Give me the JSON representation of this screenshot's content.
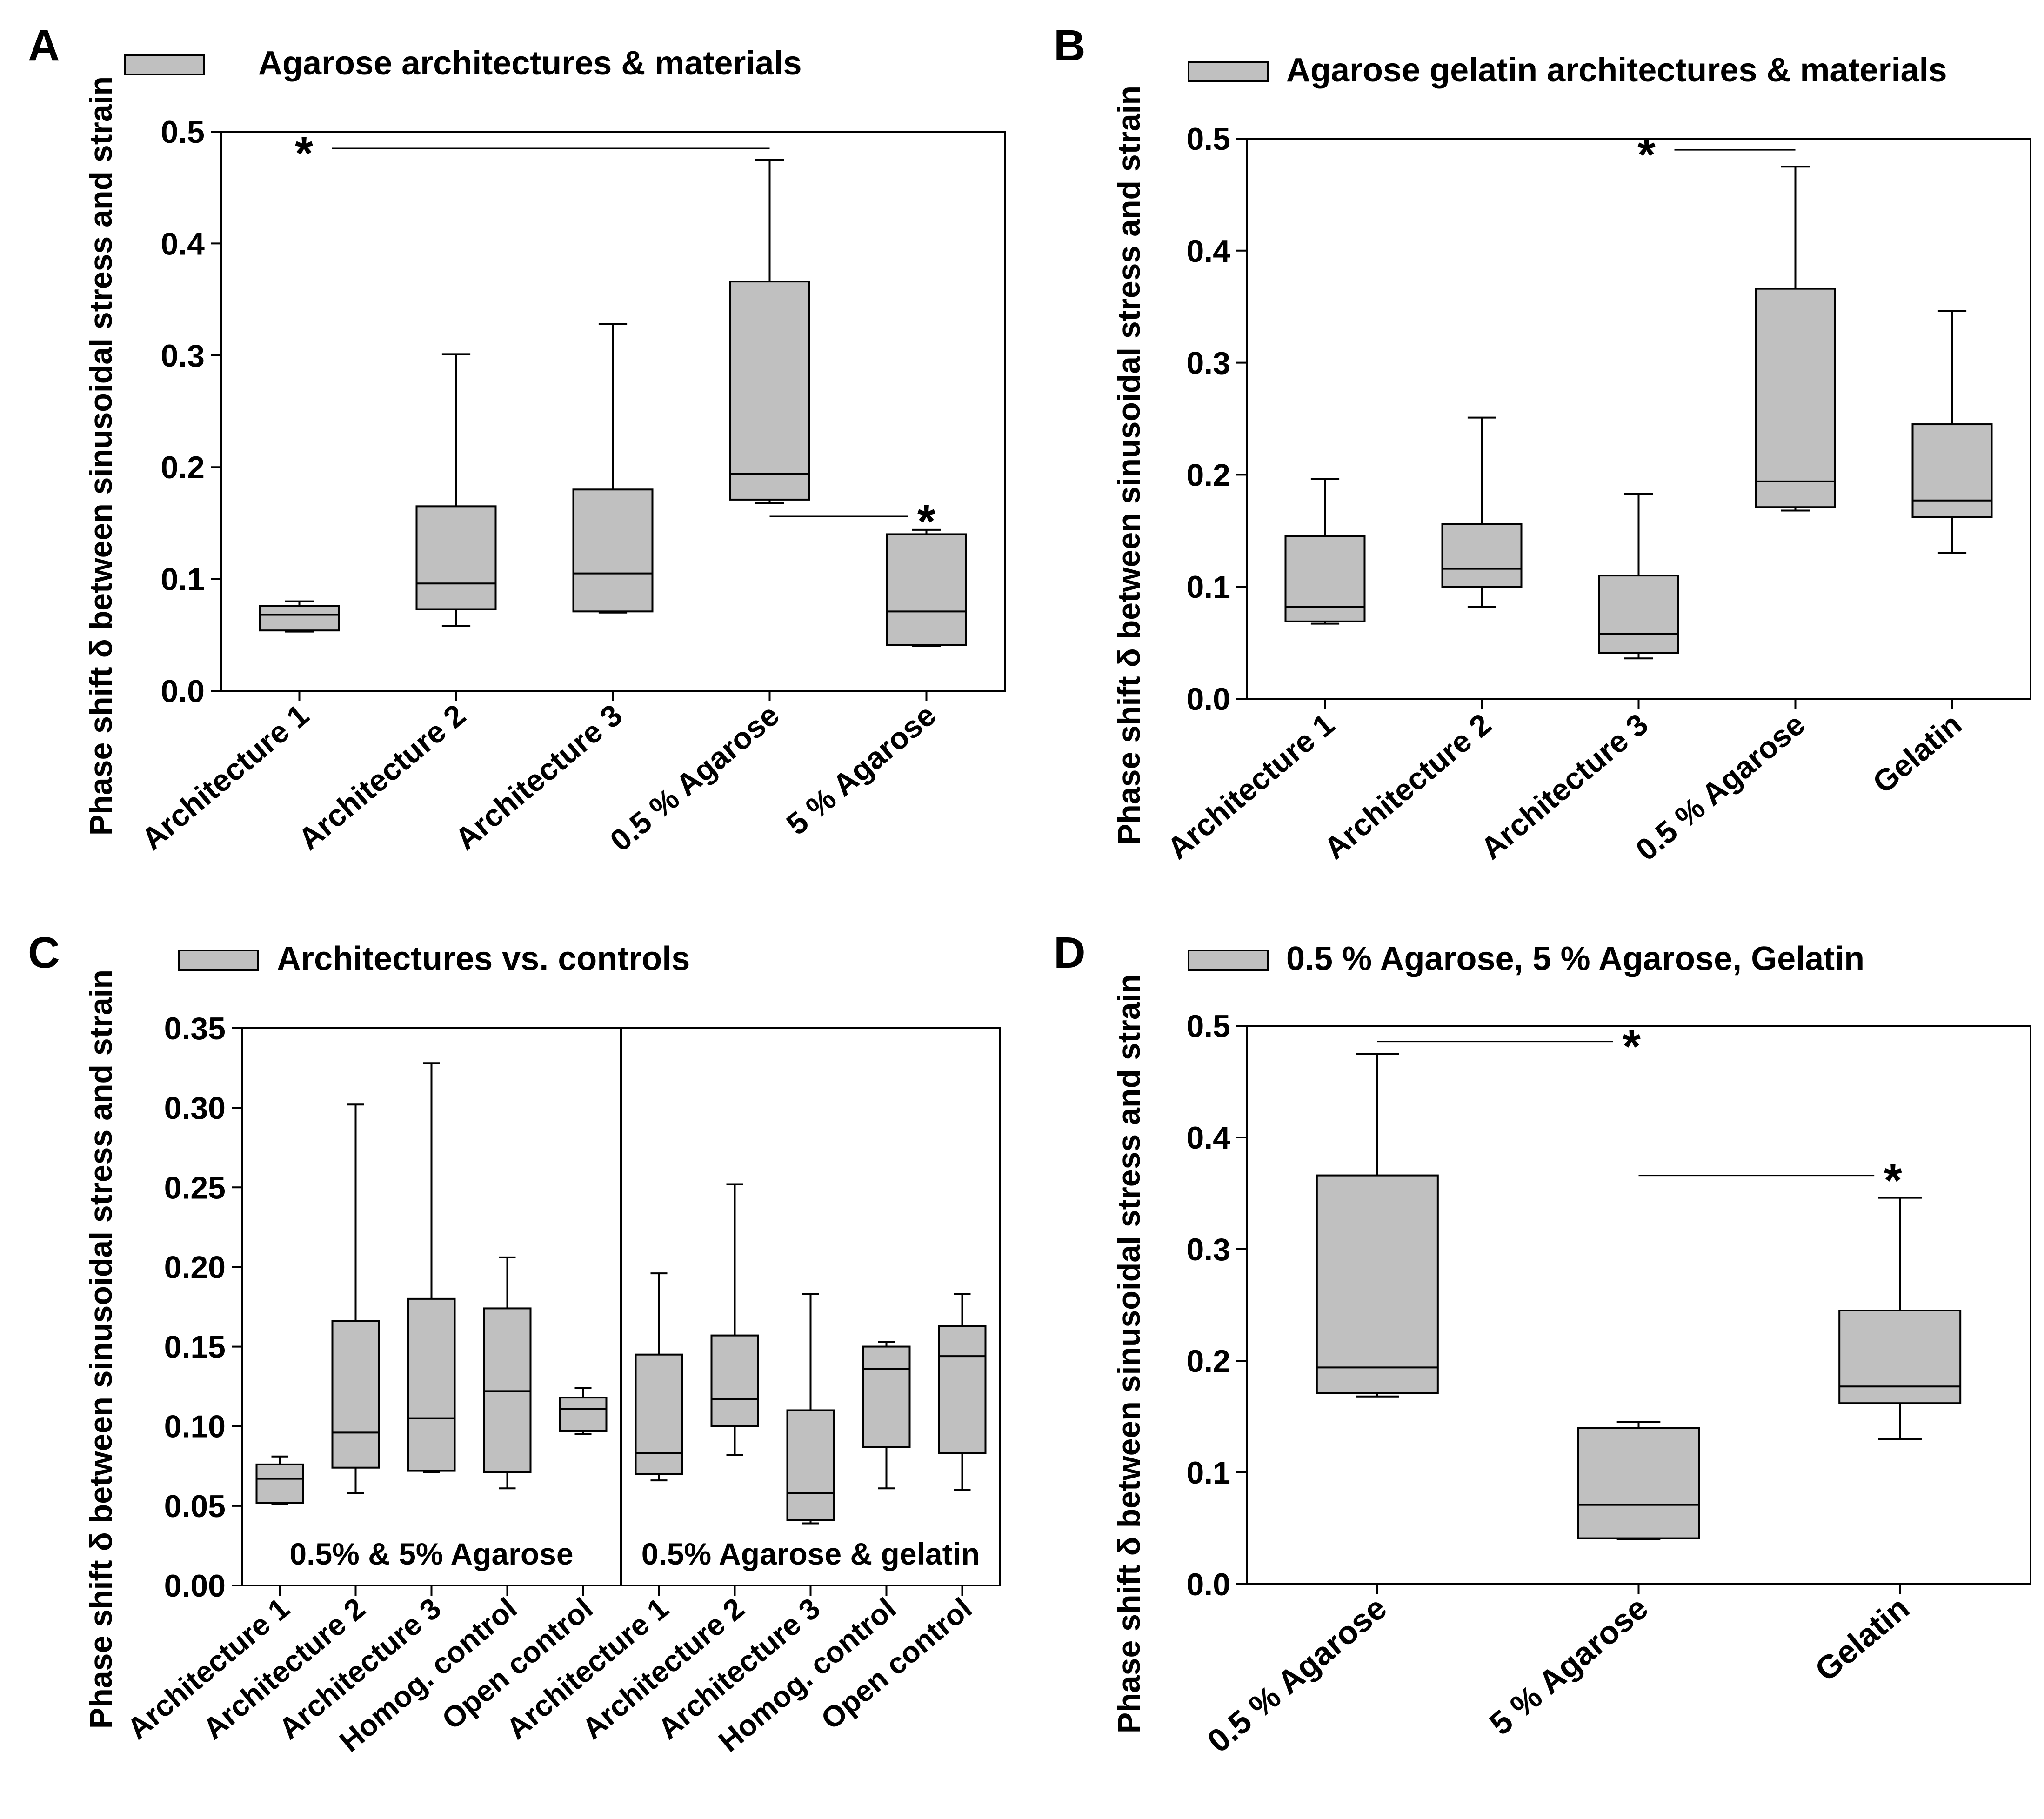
{
  "figure_ylabel": "Phase shift δ between sinusoidal stress and strain",
  "chart_data": [
    {
      "type": "box",
      "panel": "A",
      "legend": "Agarose architectures & materials",
      "ylabel": "Phase shift δ between sinusoidal stress and strain",
      "ylim": [
        0,
        0.5
      ],
      "yticks": [
        "0.0",
        "0.1",
        "0.2",
        "0.3",
        "0.4",
        "0.5"
      ],
      "categories": [
        "Architecture 1",
        "Architecture 2",
        "Architecture 3",
        "0.5 % Agarose",
        "5 % Agarose"
      ],
      "boxes": [
        {
          "min": 0.053,
          "q1": 0.054,
          "median": 0.068,
          "q3": 0.076,
          "max": 0.08
        },
        {
          "min": 0.058,
          "q1": 0.073,
          "median": 0.096,
          "q3": 0.165,
          "max": 0.301
        },
        {
          "min": 0.07,
          "q1": 0.071,
          "median": 0.105,
          "q3": 0.18,
          "max": 0.328
        },
        {
          "min": 0.168,
          "q1": 0.171,
          "median": 0.194,
          "q3": 0.366,
          "max": 0.475
        },
        {
          "min": 0.04,
          "q1": 0.041,
          "median": 0.071,
          "q3": 0.14,
          "max": 0.144
        }
      ],
      "significance": [
        {
          "label": "*",
          "from": 0,
          "to": 3,
          "y": 0.485
        },
        {
          "label": "*",
          "from": 3,
          "to": 4,
          "y": 0.156
        }
      ]
    },
    {
      "type": "box",
      "panel": "B",
      "legend": "Agarose gelatin architectures & materials",
      "ylabel": "Phase shift δ between sinusoidal stress and strain",
      "ylim": [
        0,
        0.5
      ],
      "yticks": [
        "0.0",
        "0.1",
        "0.2",
        "0.3",
        "0.4",
        "0.5"
      ],
      "categories": [
        "Architecture 1",
        "Architecture 2",
        "Architecture 3",
        "0.5 % Agarose",
        "Gelatin"
      ],
      "boxes": [
        {
          "min": 0.067,
          "q1": 0.069,
          "median": 0.082,
          "q3": 0.145,
          "max": 0.196
        },
        {
          "min": 0.082,
          "q1": 0.1,
          "median": 0.116,
          "q3": 0.156,
          "max": 0.251
        },
        {
          "min": 0.036,
          "q1": 0.041,
          "median": 0.058,
          "q3": 0.11,
          "max": 0.183
        },
        {
          "min": 0.168,
          "q1": 0.171,
          "median": 0.194,
          "q3": 0.366,
          "max": 0.475
        },
        {
          "min": 0.13,
          "q1": 0.162,
          "median": 0.177,
          "q3": 0.245,
          "max": 0.346
        }
      ],
      "significance": [
        {
          "label": "*",
          "from": 2,
          "to": 3,
          "y": 0.49
        }
      ]
    },
    {
      "type": "box",
      "panel": "C",
      "legend": "Architectures vs. controls",
      "ylabel": "Phase shift δ between sinusoidal stress and strain",
      "ylim": [
        0,
        0.35
      ],
      "yticks": [
        "0.00",
        "0.05",
        "0.10",
        "0.15",
        "0.20",
        "0.25",
        "0.30",
        "0.35"
      ],
      "groups": [
        "0.5% & 5% Agarose",
        "0.5% Agarose & gelatin"
      ],
      "categories": [
        "Architecture 1",
        "Architecture 2",
        "Architecture 3",
        "Homog. control",
        "Open control",
        "Architecture 1",
        "Architecture 2",
        "Architecture 3",
        "Homog. control",
        "Open control"
      ],
      "boxes": [
        {
          "min": 0.051,
          "q1": 0.052,
          "median": 0.067,
          "q3": 0.076,
          "max": 0.081
        },
        {
          "min": 0.058,
          "q1": 0.074,
          "median": 0.096,
          "q3": 0.166,
          "max": 0.302
        },
        {
          "min": 0.071,
          "q1": 0.072,
          "median": 0.105,
          "q3": 0.18,
          "max": 0.328
        },
        {
          "min": 0.061,
          "q1": 0.071,
          "median": 0.122,
          "q3": 0.174,
          "max": 0.206
        },
        {
          "min": 0.095,
          "q1": 0.097,
          "median": 0.111,
          "q3": 0.118,
          "max": 0.124
        },
        {
          "min": 0.066,
          "q1": 0.07,
          "median": 0.083,
          "q3": 0.145,
          "max": 0.196
        },
        {
          "min": 0.082,
          "q1": 0.1,
          "median": 0.117,
          "q3": 0.157,
          "max": 0.252
        },
        {
          "min": 0.039,
          "q1": 0.041,
          "median": 0.058,
          "q3": 0.11,
          "max": 0.183
        },
        {
          "min": 0.061,
          "q1": 0.087,
          "median": 0.136,
          "q3": 0.15,
          "max": 0.153
        },
        {
          "min": 0.06,
          "q1": 0.083,
          "median": 0.144,
          "q3": 0.163,
          "max": 0.183
        }
      ]
    },
    {
      "type": "box",
      "panel": "D",
      "legend": "0.5 % Agarose, 5 % Agarose, Gelatin",
      "ylabel": "Phase shift δ between sinusoidal stress and strain",
      "ylim": [
        0,
        0.5
      ],
      "yticks": [
        "0.0",
        "0.1",
        "0.2",
        "0.3",
        "0.4",
        "0.5"
      ],
      "categories": [
        "0.5 % Agarose",
        "5 % Agarose",
        "Gelatin"
      ],
      "boxes": [
        {
          "min": 0.168,
          "q1": 0.171,
          "median": 0.194,
          "q3": 0.366,
          "max": 0.475
        },
        {
          "min": 0.04,
          "q1": 0.041,
          "median": 0.071,
          "q3": 0.14,
          "max": 0.145
        },
        {
          "min": 0.13,
          "q1": 0.162,
          "median": 0.177,
          "q3": 0.245,
          "max": 0.346
        }
      ],
      "significance": [
        {
          "label": "*",
          "from": 0,
          "to": 1,
          "y": 0.486
        },
        {
          "label": "*",
          "from": 1,
          "to": 2,
          "y": 0.366
        }
      ]
    }
  ]
}
